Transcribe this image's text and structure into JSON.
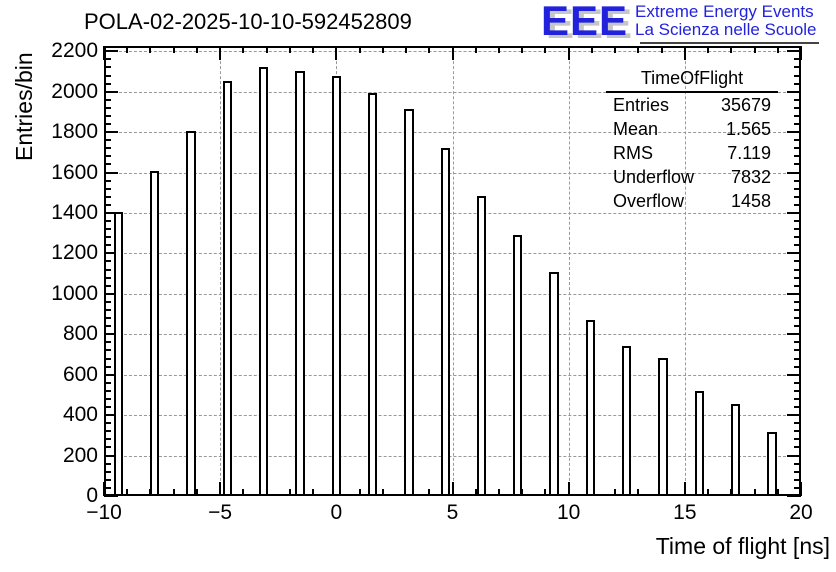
{
  "header": {
    "title": "POLA-02-2025-10-10-592452809"
  },
  "logo": {
    "acronym": "EEE",
    "tagline1": "Extreme Energy Events",
    "tagline2": "La Scienza nelle Scuole",
    "color": "#2222dd",
    "shadow_color": "#c6c6c6"
  },
  "stats": {
    "title": "TimeOfFlight",
    "rows": [
      {
        "label": "Entries",
        "value": "35679"
      },
      {
        "label": "Mean",
        "value": "1.565"
      },
      {
        "label": "RMS",
        "value": "7.119"
      },
      {
        "label": "Underflow",
        "value": "7832"
      },
      {
        "label": "Overflow",
        "value": "1458"
      }
    ]
  },
  "chart_data": {
    "type": "bar",
    "title": "POLA-02-2025-10-10-592452809",
    "xlabel": "Time of flight [ns]",
    "ylabel": "Entries/bin",
    "xlim": [
      -10,
      20
    ],
    "ylim": [
      0,
      2226
    ],
    "x_major_ticks": [
      -10,
      -5,
      0,
      5,
      10,
      15,
      20
    ],
    "x_minor_step": 1,
    "y_major_step": 200,
    "y_minor_step": 40,
    "grid": true,
    "legend": "none",
    "bar_width": 0.4,
    "bar_fill": "#ffffff",
    "bar_stroke": "#000000",
    "grid_color": "#999999",
    "x": [
      -9.375,
      -7.8125,
      -6.25,
      -4.6875,
      -3.125,
      -1.5625,
      0,
      1.5625,
      3.125,
      4.6875,
      6.25,
      7.8125,
      9.375,
      10.9375,
      12.5,
      14.0625,
      15.625,
      17.1875,
      18.75
    ],
    "values": [
      1405,
      1610,
      1805,
      2055,
      2120,
      2100,
      2080,
      1995,
      1915,
      1720,
      1485,
      1290,
      1110,
      870,
      740,
      685,
      520,
      455,
      315
    ]
  }
}
